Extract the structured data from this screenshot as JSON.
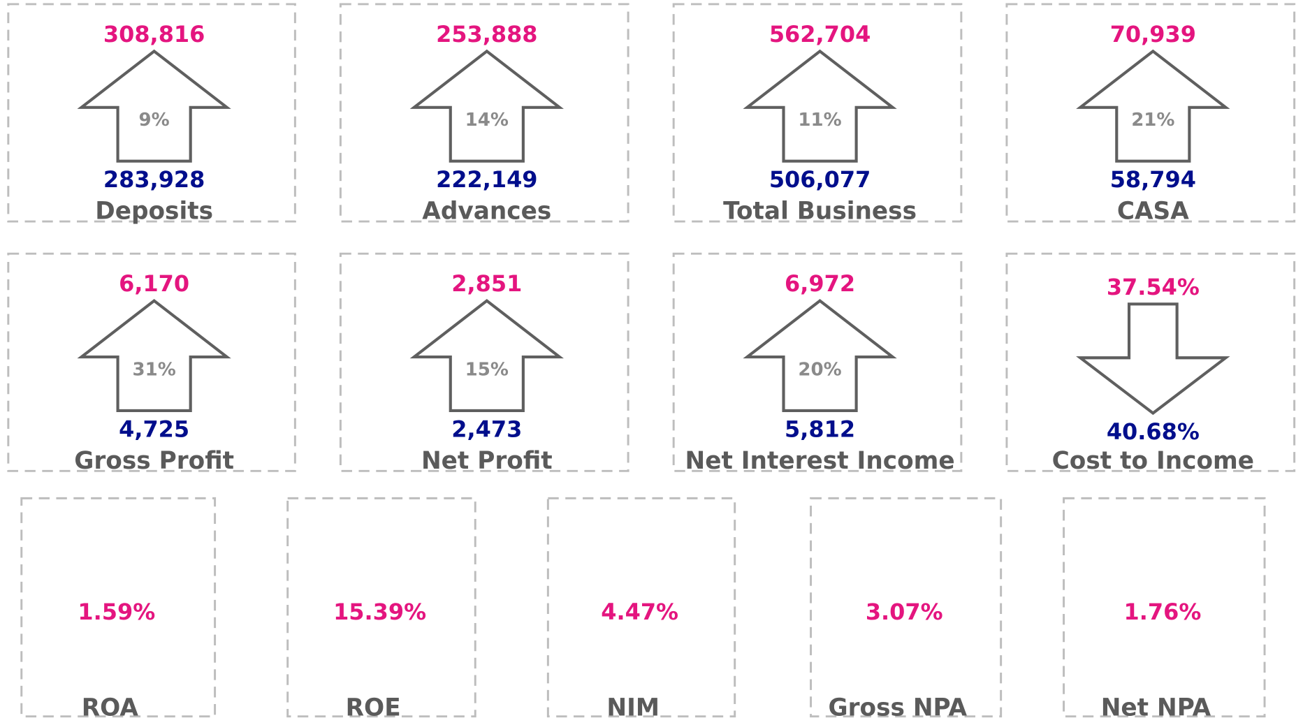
{
  "cards": [
    {
      "label": "Deposits",
      "current": "308,816",
      "previous": "283,928",
      "change": "9%",
      "direction": "up"
    },
    {
      "label": "Advances",
      "current": "253,888",
      "previous": "222,149",
      "change": "14%",
      "direction": "up"
    },
    {
      "label": "Total Business",
      "current": "562,704",
      "previous": "506,077",
      "change": "11%",
      "direction": "up"
    },
    {
      "label": "CASA",
      "current": "70,939",
      "previous": "58,794",
      "change": "21%",
      "direction": "up"
    },
    {
      "label": "Gross Profit",
      "current": "6,170",
      "previous": "4,725",
      "change": "31%",
      "direction": "up"
    },
    {
      "label": "Net Profit",
      "current": "2,851",
      "previous": "2,473",
      "change": "15%",
      "direction": "up"
    },
    {
      "label": "Net Interest Income",
      "current": "6,972",
      "previous": "5,812",
      "change": "20%",
      "direction": "up"
    },
    {
      "label": "Cost to Income",
      "current": "37.54%",
      "previous": "40.68%",
      "direction": "down"
    }
  ],
  "ratios": [
    {
      "label": "ROA",
      "value": "1.59%"
    },
    {
      "label": "ROE",
      "value": "15.39%"
    },
    {
      "label": "NIM",
      "value": "4.47%"
    },
    {
      "label": "Gross NPA",
      "value": "3.07%"
    },
    {
      "label": "Net NPA",
      "value": "1.76%"
    }
  ]
}
